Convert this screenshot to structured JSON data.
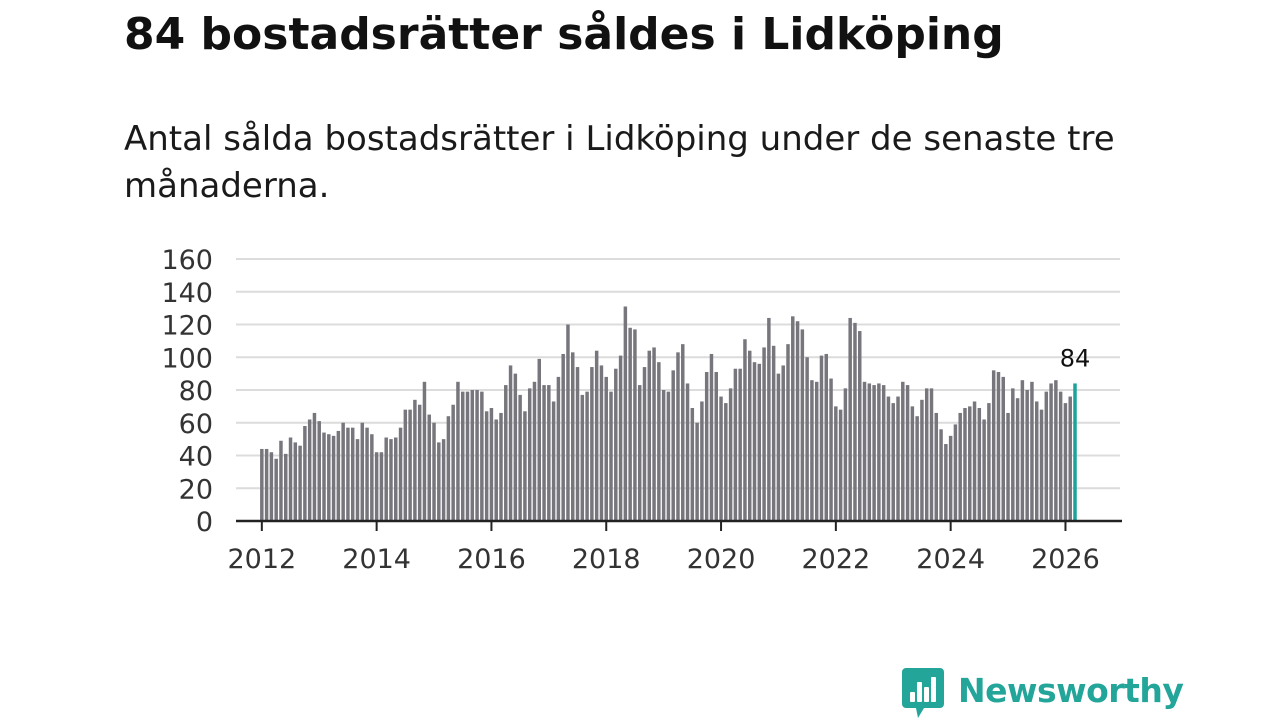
{
  "title": "84 bostadsrätter såldes i Lidköping",
  "subtitle": "Antal sålda bostadsrätter i Lidköping under de senaste tre månaderna.",
  "brand": {
    "name": "Newsworthy",
    "color": "#24a59a"
  },
  "colors": {
    "bar": "#77767d",
    "highlight": "#1aa39b",
    "grid": "#dcdcdc",
    "axis": "#222222"
  },
  "chart_data": {
    "type": "bar",
    "title": "",
    "xlabel": "",
    "ylabel": "",
    "x_start": 2012.0,
    "x_step": 0.08333,
    "xlim": [
      2011.55,
      2026.95
    ],
    "ylim": [
      0,
      160
    ],
    "yticks": [
      0,
      20,
      40,
      60,
      80,
      100,
      120,
      140,
      160
    ],
    "xticks": [
      2012,
      2014,
      2016,
      2018,
      2020,
      2022,
      2024,
      2026
    ],
    "grid": true,
    "series": [
      {
        "name": "Antal sålda bostadsrätter",
        "values": [
          44,
          44,
          42,
          38,
          49,
          41,
          51,
          48,
          46,
          58,
          62,
          66,
          61,
          54,
          53,
          52,
          55,
          60,
          57,
          57,
          50,
          60,
          57,
          53,
          42,
          42,
          51,
          50,
          51,
          57,
          68,
          68,
          74,
          71,
          85,
          65,
          60,
          48,
          50,
          64,
          71,
          85,
          79,
          79,
          80,
          80,
          79,
          67,
          69,
          62,
          66,
          83,
          95,
          90,
          77,
          67,
          81,
          85,
          99,
          83,
          83,
          73,
          88,
          102,
          120,
          103,
          94,
          77,
          79,
          94,
          104,
          95,
          88,
          79,
          93,
          101,
          131,
          118,
          117,
          83,
          94,
          104,
          106,
          97,
          80,
          79,
          92,
          103,
          108,
          84,
          69,
          60,
          73,
          91,
          102,
          91,
          76,
          72,
          81,
          93,
          93,
          111,
          104,
          97,
          96,
          106,
          124,
          107,
          90,
          95,
          108,
          125,
          122,
          117,
          100,
          86,
          85,
          101,
          102,
          87,
          70,
          68,
          81,
          124,
          121,
          116,
          85,
          84,
          83,
          84,
          83,
          76,
          72,
          76,
          85,
          83,
          70,
          64,
          74,
          81,
          81,
          66,
          56,
          47,
          52,
          59,
          66,
          69,
          70,
          73,
          69,
          62,
          72,
          92,
          91,
          88,
          66,
          81,
          75,
          86,
          80,
          85,
          73,
          68,
          79,
          84,
          86,
          79,
          72,
          76,
          84
        ]
      }
    ],
    "annotations": [
      {
        "text": "84",
        "index": 170
      }
    ],
    "highlight_index": 170
  }
}
